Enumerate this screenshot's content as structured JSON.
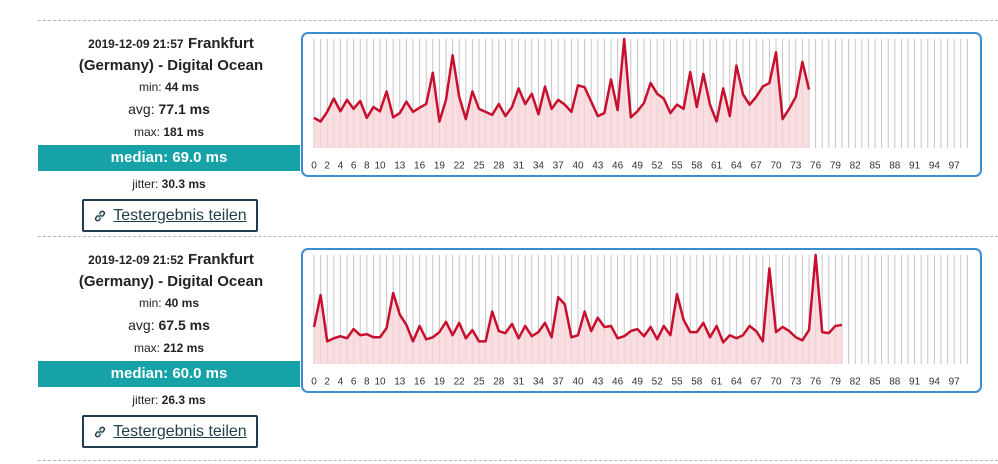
{
  "results": [
    {
      "date": "2019-12-09 21:57",
      "location": "Frankfurt (Germany) - Digital Ocean",
      "min": {
        "label": "min:",
        "value": "44 ms"
      },
      "avg": {
        "label": "avg:",
        "value": "77.1 ms"
      },
      "max": {
        "label": "max:",
        "value": "181 ms"
      },
      "median": "median: 69.0 ms",
      "jitter": {
        "label": "jitter:",
        "value": "30.3 ms"
      },
      "share": "Testergebnis teilen",
      "chart": {
        "type": "line",
        "color": "#c8102e",
        "fill": "#f8d3d7",
        "x": [
          0,
          1,
          2,
          3,
          4,
          5,
          6,
          7,
          8,
          9,
          10,
          11,
          12,
          13,
          14,
          15,
          16,
          17,
          18,
          19,
          20,
          21,
          22,
          23,
          24,
          25,
          26,
          27,
          28,
          29,
          30,
          31,
          32,
          33,
          34,
          35,
          36,
          37,
          38,
          39,
          40,
          41,
          42,
          43,
          44,
          45,
          46,
          47,
          48,
          49,
          50,
          51,
          52,
          53,
          54,
          55,
          56,
          57,
          58,
          59,
          60,
          61,
          62,
          63,
          64,
          65,
          66,
          67,
          68,
          69,
          70,
          71,
          72,
          73,
          74,
          75
        ],
        "values": [
          50,
          44,
          60,
          82,
          61,
          80,
          65,
          78,
          50,
          68,
          61,
          94,
          51,
          58,
          77,
          60,
          67,
          73,
          125,
          44,
          80,
          154,
          85,
          48,
          94,
          65,
          60,
          55,
          73,
          53,
          68,
          99,
          73,
          90,
          56,
          102,
          65,
          80,
          72,
          60,
          104,
          101,
          77,
          53,
          58,
          114,
          63,
          181,
          51,
          61,
          75,
          108,
          90,
          82,
          58,
          72,
          65,
          126,
          68,
          123,
          72,
          44,
          99,
          53,
          137,
          89,
          72,
          85,
          102,
          108,
          159,
          48,
          65,
          85,
          143,
          97
        ],
        "xlim": [
          0,
          99
        ],
        "ylim": [
          0,
          181
        ],
        "xticks": [
          0,
          2,
          4,
          6,
          8,
          10,
          13,
          16,
          19,
          22,
          25,
          28,
          31,
          34,
          37,
          40,
          43,
          46,
          49,
          52,
          55,
          58,
          61,
          64,
          67,
          70,
          73,
          76,
          79,
          82,
          85,
          88,
          91,
          94,
          97
        ]
      }
    },
    {
      "date": "2019-12-09 21:52",
      "location": "Frankfurt (Germany) - Digital Ocean",
      "min": {
        "label": "min:",
        "value": "40 ms"
      },
      "avg": {
        "label": "avg:",
        "value": "67.5 ms"
      },
      "max": {
        "label": "max:",
        "value": "212 ms"
      },
      "median": "median: 60.0 ms",
      "jitter": {
        "label": "jitter:",
        "value": "26.3 ms"
      },
      "share": "Testergebnis teilen",
      "chart": {
        "type": "line",
        "color": "#c8102e",
        "fill": "#f8d3d7",
        "x": [
          0,
          1,
          2,
          3,
          4,
          5,
          6,
          7,
          8,
          9,
          10,
          11,
          12,
          13,
          14,
          15,
          16,
          17,
          18,
          19,
          20,
          21,
          22,
          23,
          24,
          25,
          26,
          27,
          28,
          29,
          30,
          31,
          32,
          33,
          34,
          35,
          36,
          37,
          38,
          39,
          40,
          41,
          42,
          43,
          44,
          45,
          46,
          47,
          48,
          49,
          50,
          51,
          52,
          53,
          54,
          55,
          56,
          57,
          58,
          59,
          60,
          61,
          62,
          63,
          64,
          65,
          66,
          67,
          68,
          69,
          70,
          71,
          72,
          73,
          74,
          75,
          76,
          77,
          78,
          79,
          80
        ],
        "values": [
          72,
          134,
          44,
          50,
          54,
          50,
          68,
          56,
          58,
          52,
          52,
          70,
          138,
          96,
          76,
          44,
          74,
          48,
          52,
          62,
          82,
          56,
          80,
          50,
          66,
          44,
          44,
          102,
          64,
          60,
          78,
          50,
          74,
          54,
          62,
          80,
          52,
          130,
          116,
          52,
          56,
          102,
          64,
          90,
          72,
          74,
          50,
          54,
          64,
          68,
          54,
          72,
          48,
          74,
          56,
          136,
          86,
          62,
          62,
          80,
          52,
          74,
          42,
          56,
          50,
          56,
          74,
          64,
          44,
          186,
          62,
          72,
          64,
          52,
          46,
          66,
          212,
          62,
          60,
          74,
          76
        ],
        "xlim": [
          0,
          99
        ],
        "ylim": [
          0,
          212
        ],
        "xticks": [
          0,
          2,
          4,
          6,
          8,
          10,
          13,
          16,
          19,
          22,
          25,
          28,
          31,
          34,
          37,
          40,
          43,
          46,
          49,
          52,
          55,
          58,
          61,
          64,
          67,
          70,
          73,
          76,
          79,
          82,
          85,
          88,
          91,
          94,
          97
        ]
      }
    }
  ]
}
